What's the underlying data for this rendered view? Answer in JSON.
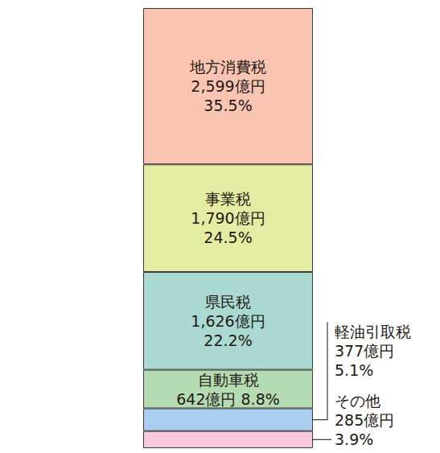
{
  "chart_data": {
    "type": "bar",
    "stacked": true,
    "data_labels": true,
    "tick_labels": false,
    "categories": [
      null
    ],
    "ylim": [
      0,
      7319
    ],
    "series": [
      {
        "name": "地方消費税",
        "color": "#f9c5b2",
        "values": [
          2599
        ],
        "value_labels": [
          "2,599億円"
        ],
        "share": 35.5,
        "share_label": "35.5%"
      },
      {
        "name": "事業税",
        "color": "#e4eba3",
        "values": [
          1790
        ],
        "value_labels": [
          "1,790億円"
        ],
        "share": 24.5,
        "share_label": "24.5%"
      },
      {
        "name": "県民税",
        "color": "#a9d9d1",
        "values": [
          1626
        ],
        "value_labels": [
          "1,626億円"
        ],
        "share": 22.2,
        "share_label": "22.2%"
      },
      {
        "name": "自動車税",
        "color": "#b5dbb2",
        "values": [
          642
        ],
        "value_labels": [
          "642億円"
        ],
        "share": 8.8,
        "share_label": "8.8%"
      },
      {
        "name": "軽油引取税",
        "color": "#abcef0",
        "values": [
          377
        ],
        "value_labels": [
          "377億円"
        ],
        "share": 5.1,
        "share_label": "5.1%"
      },
      {
        "name": "その他",
        "color": "#f8c8dd",
        "values": [
          285
        ],
        "value_labels": [
          "285億円"
        ],
        "share": 3.9,
        "share_label": "3.9%"
      }
    ]
  }
}
